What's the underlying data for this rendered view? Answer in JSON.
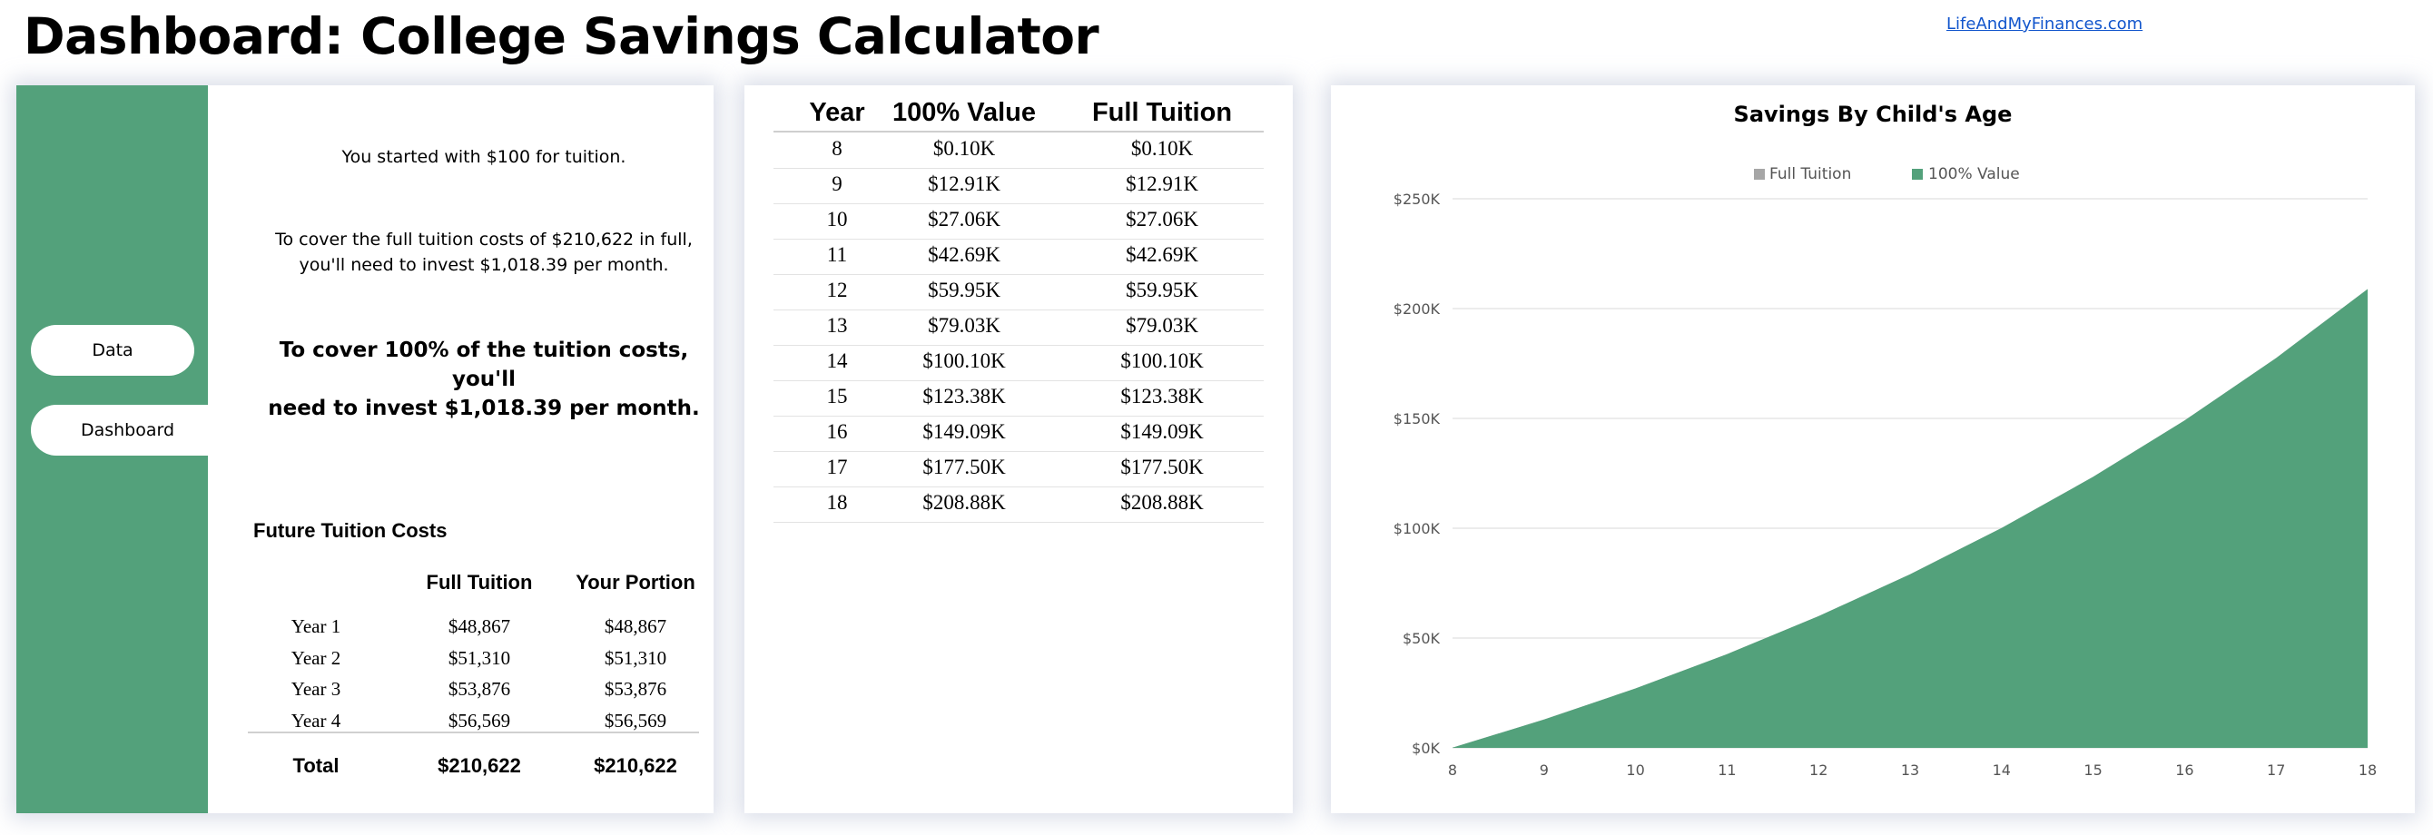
{
  "header": {
    "title": "Dashboard: College Savings Calculator",
    "site_link": "LifeAndMyFinances.com"
  },
  "nav": {
    "data_label": "Data",
    "dashboard_label": "Dashboard"
  },
  "summary": {
    "started": "You started with $100 for tuition.",
    "full_cost_line1": "To cover the full tuition costs of $210,622 in full,",
    "full_cost_line2": "you'll need to invest $1,018.39 per month.",
    "portion_line1": "To cover 100% of the tuition costs, you'll",
    "portion_line2": "need to invest $1,018.39 per month."
  },
  "future_costs": {
    "title": "Future Tuition Costs",
    "col_full": "Full Tuition",
    "col_portion": "Your Portion",
    "rows": [
      {
        "year": "Year 1",
        "full": "$48,867",
        "portion": "$48,867"
      },
      {
        "year": "Year 2",
        "full": "$51,310",
        "portion": "$51,310"
      },
      {
        "year": "Year 3",
        "full": "$53,876",
        "portion": "$53,876"
      },
      {
        "year": "Year 4",
        "full": "$56,569",
        "portion": "$56,569"
      }
    ],
    "total_label": "Total",
    "total_full": "$210,622",
    "total_portion": "$210,622"
  },
  "value_table": {
    "headers": [
      "Year",
      "100% Value",
      "Full Tuition"
    ],
    "rows": [
      [
        "8",
        "$0.10K",
        "$0.10K"
      ],
      [
        "9",
        "$12.91K",
        "$12.91K"
      ],
      [
        "10",
        "$27.06K",
        "$27.06K"
      ],
      [
        "11",
        "$42.69K",
        "$42.69K"
      ],
      [
        "12",
        "$59.95K",
        "$59.95K"
      ],
      [
        "13",
        "$79.03K",
        "$79.03K"
      ],
      [
        "14",
        "$100.10K",
        "$100.10K"
      ],
      [
        "15",
        "$123.38K",
        "$123.38K"
      ],
      [
        "16",
        "$149.09K",
        "$149.09K"
      ],
      [
        "17",
        "$177.50K",
        "$177.50K"
      ],
      [
        "18",
        "$208.88K",
        "$208.88K"
      ]
    ]
  },
  "chart_data": {
    "type": "area",
    "title": "Savings By Child's Age",
    "categories": [
      "8",
      "9",
      "10",
      "11",
      "12",
      "13",
      "14",
      "15",
      "16",
      "17",
      "18"
    ],
    "series": [
      {
        "name": "Full Tuition",
        "color": "#a6a6a6",
        "values": [
          0.1,
          12.91,
          27.06,
          42.69,
          59.95,
          79.03,
          100.1,
          123.38,
          149.09,
          177.5,
          208.88
        ]
      },
      {
        "name": "100% Value",
        "color": "#53a17b",
        "values": [
          0.1,
          12.91,
          27.06,
          42.69,
          59.95,
          79.03,
          100.1,
          123.38,
          149.09,
          177.5,
          208.88
        ]
      }
    ],
    "y_ticks": [
      "$0K",
      "$50K",
      "$100K",
      "$150K",
      "$200K",
      "$250K"
    ],
    "ylim": [
      0,
      250
    ],
    "legend": "top-center",
    "grid": true
  },
  "colors": {
    "accent_green": "#53a17b",
    "link_blue": "#1155cc"
  }
}
